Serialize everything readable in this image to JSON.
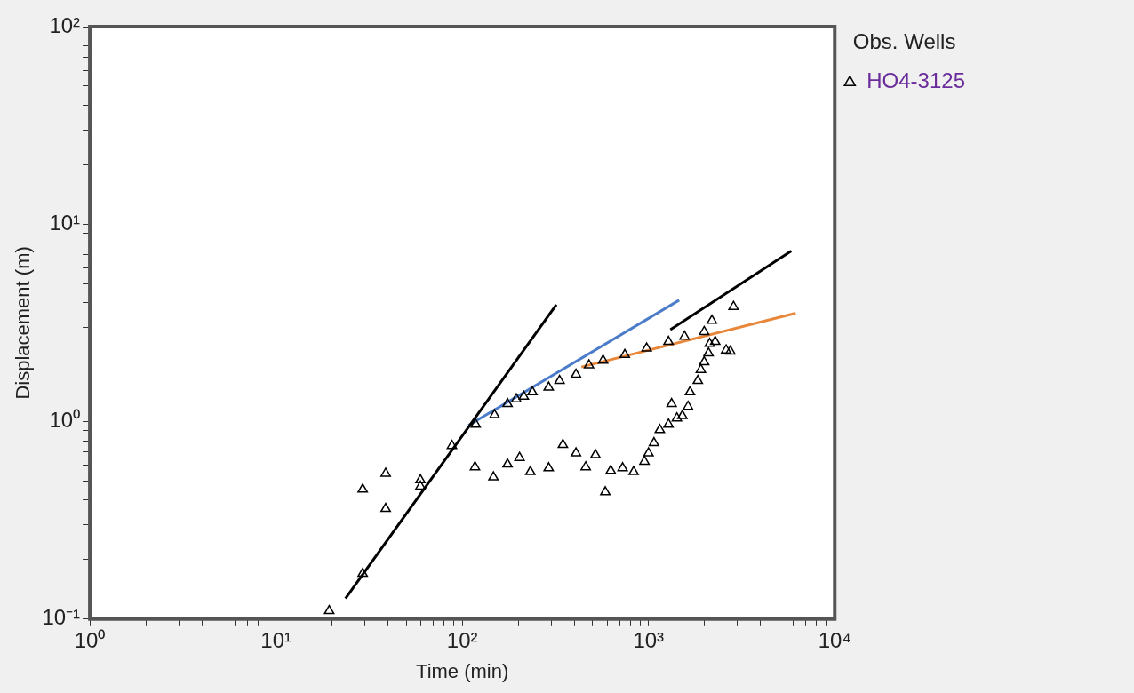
{
  "chart_data": {
    "type": "scatter",
    "xlabel": "Time (min)",
    "ylabel": "Displacement (m)",
    "legend_title": "Obs. Wells",
    "legend": "top right",
    "log": "xy",
    "grid": false,
    "line_style": "solid",
    "xlim": [
      1,
      10000
    ],
    "ylim": [
      0.1,
      100
    ],
    "xticks": [
      {
        "value": 1,
        "label": "10⁰"
      },
      {
        "value": 2,
        "label": null
      },
      {
        "value": 3,
        "label": null
      },
      {
        "value": 4,
        "label": null
      },
      {
        "value": 5,
        "label": null
      },
      {
        "value": 6,
        "label": null
      },
      {
        "value": 7,
        "label": null
      },
      {
        "value": 8,
        "label": null
      },
      {
        "value": 9,
        "label": null
      },
      {
        "value": 10,
        "label": "10¹"
      },
      {
        "value": 20,
        "label": null
      },
      {
        "value": 30,
        "label": null
      },
      {
        "value": 40,
        "label": null
      },
      {
        "value": 50,
        "label": null
      },
      {
        "value": 60,
        "label": null
      },
      {
        "value": 70,
        "label": null
      },
      {
        "value": 80,
        "label": null
      },
      {
        "value": 90,
        "label": null
      },
      {
        "value": 100,
        "label": "10²"
      },
      {
        "value": 200,
        "label": null
      },
      {
        "value": 300,
        "label": null
      },
      {
        "value": 400,
        "label": null
      },
      {
        "value": 500,
        "label": null
      },
      {
        "value": 600,
        "label": null
      },
      {
        "value": 700,
        "label": null
      },
      {
        "value": 800,
        "label": null
      },
      {
        "value": 900,
        "label": null
      },
      {
        "value": 1000,
        "label": "10³"
      },
      {
        "value": 2000,
        "label": null
      },
      {
        "value": 3000,
        "label": null
      },
      {
        "value": 4000,
        "label": null
      },
      {
        "value": 5000,
        "label": null
      },
      {
        "value": 6000,
        "label": null
      },
      {
        "value": 7000,
        "label": null
      },
      {
        "value": 8000,
        "label": null
      },
      {
        "value": 9000,
        "label": null
      },
      {
        "value": 10000,
        "label": "10⁴"
      }
    ],
    "yticks": [
      {
        "value": 0.1,
        "label": "10⁻¹"
      },
      {
        "value": 0.2,
        "label": null
      },
      {
        "value": 0.3,
        "label": null
      },
      {
        "value": 0.4,
        "label": null
      },
      {
        "value": 0.5,
        "label": null
      },
      {
        "value": 0.6,
        "label": null
      },
      {
        "value": 0.7,
        "label": null
      },
      {
        "value": 0.8,
        "label": null
      },
      {
        "value": 0.9,
        "label": null
      },
      {
        "value": 1,
        "label": "10⁰"
      },
      {
        "value": 2,
        "label": null
      },
      {
        "value": 3,
        "label": null
      },
      {
        "value": 4,
        "label": null
      },
      {
        "value": 5,
        "label": null
      },
      {
        "value": 6,
        "label": null
      },
      {
        "value": 7,
        "label": null
      },
      {
        "value": 8,
        "label": null
      },
      {
        "value": 9,
        "label": null
      },
      {
        "value": 10,
        "label": "10¹"
      },
      {
        "value": 20,
        "label": null
      },
      {
        "value": 30,
        "label": null
      },
      {
        "value": 40,
        "label": null
      },
      {
        "value": 50,
        "label": null
      },
      {
        "value": 60,
        "label": null
      },
      {
        "value": 70,
        "label": null
      },
      {
        "value": 80,
        "label": null
      },
      {
        "value": 90,
        "label": null
      },
      {
        "value": 100,
        "label": "10²"
      }
    ],
    "series": [
      {
        "name": "HO4-3125",
        "marker": "triangle",
        "color": "#000000",
        "x": [
          19.3,
          29.2,
          29.2,
          38.8,
          38.8,
          59.6,
          59.6,
          88,
          118,
          149,
          175,
          195,
          214,
          238,
          291,
          333,
          408,
          479,
          570,
          746,
          977,
          1280,
          1560,
          1990,
          2190,
          2860,
          117,
          147,
          175,
          203,
          232,
          291,
          347,
          408,
          460,
          519,
          586,
          627,
          726,
          832,
          951,
          1000,
          1070,
          1150,
          1280,
          1330,
          1420,
          1520,
          1630,
          1670,
          1840,
          1910,
          1990,
          2100,
          2130,
          2280,
          2610,
          2750
        ],
        "values": [
          0.11,
          0.17,
          0.454,
          0.546,
          0.362,
          0.506,
          0.47,
          0.755,
          0.968,
          1.08,
          1.23,
          1.3,
          1.34,
          1.41,
          1.49,
          1.61,
          1.73,
          1.93,
          2.04,
          2.18,
          2.35,
          2.54,
          2.7,
          2.85,
          3.25,
          3.82,
          0.589,
          0.523,
          0.608,
          0.656,
          0.557,
          0.582,
          0.764,
          0.692,
          0.589,
          0.678,
          0.44,
          0.564,
          0.582,
          0.557,
          0.628,
          0.692,
          0.78,
          0.908,
          0.968,
          1.23,
          1.04,
          1.07,
          1.19,
          1.41,
          1.61,
          1.83,
          2.0,
          2.22,
          2.48,
          2.54,
          2.3,
          2.27
        ]
      },
      {
        "type": "line",
        "marker": "none",
        "color": "#000000",
        "x": [
          23.6,
          320
        ],
        "values": [
          0.127,
          3.91
        ]
      },
      {
        "type": "line",
        "marker": "none",
        "color": "#4a7cc9",
        "x": [
          108,
          1460
        ],
        "values": [
          0.957,
          4.12
        ]
      },
      {
        "type": "line",
        "marker": "none",
        "color": "#e8873a",
        "x": [
          436,
          6170
        ],
        "values": [
          1.89,
          3.54
        ]
      },
      {
        "type": "line",
        "marker": "none",
        "color": "#000000",
        "x": [
          1310,
          5840
        ],
        "values": [
          2.92,
          7.31
        ]
      }
    ]
  }
}
